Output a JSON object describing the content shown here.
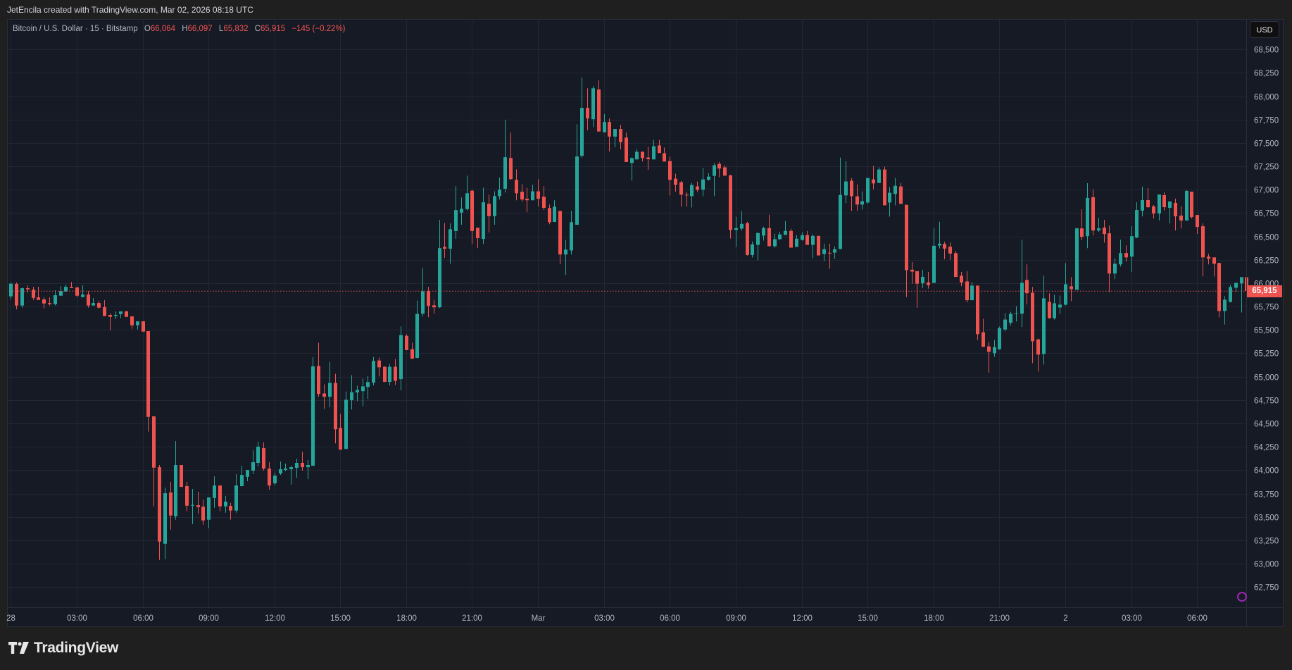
{
  "credit": "JetEncila created with TradingView.com, Mar 02, 2026 08:18 UTC",
  "legend": {
    "symbol": "Bitcoin / U.S. Dollar · 15 · Bitstamp",
    "o_label": "O",
    "o_value": "66,064",
    "h_label": "H",
    "h_value": "66,097",
    "l_label": "L",
    "l_value": "65,832",
    "c_label": "C",
    "c_value": "65,915",
    "change": "−145 (−0.22%)"
  },
  "currency_button": "USD",
  "last_price_label": "65,915",
  "footer": {
    "brand": "TradingView"
  },
  "colors": {
    "up": "#26a69a",
    "down": "#ef5350",
    "background": "#161a25",
    "grid": "#232734",
    "text": "#b2b5be"
  },
  "chart_data": {
    "type": "candlestick",
    "title": "",
    "interval": "15",
    "price_axis": {
      "ticks": [
        68500,
        68250,
        68000,
        67750,
        67500,
        67250,
        67000,
        66750,
        66500,
        66250,
        66000,
        65750,
        65500,
        65250,
        65000,
        64750,
        64500,
        64250,
        64000,
        63750,
        63500,
        63250,
        63000,
        62750
      ],
      "tick_labels": [
        "68,500",
        "68,250",
        "68,000",
        "67,750",
        "67,500",
        "67,250",
        "67,000",
        "66,750",
        "66,500",
        "66,250",
        "66,000",
        "65,750",
        "65,500",
        "65,250",
        "65,000",
        "64,750",
        "64,500",
        "64,250",
        "64,000",
        "63,750",
        "63,500",
        "63,250",
        "63,000",
        "62,750"
      ],
      "unit": "USD"
    },
    "time_axis": {
      "tick_labels": [
        "28",
        "03:00",
        "06:00",
        "09:00",
        "12:00",
        "15:00",
        "18:00",
        "21:00",
        "Mar",
        "03:00",
        "06:00",
        "09:00",
        "12:00",
        "15:00",
        "18:00",
        "21:00",
        "2",
        "03:00",
        "06:00"
      ]
    },
    "grid": true,
    "last_price": 65915,
    "ohlc": [
      [
        65859,
        66007,
        65826,
        65994
      ],
      [
        65992,
        66007,
        65720,
        65761
      ],
      [
        65761,
        65954,
        65738,
        65946
      ],
      [
        65946,
        65977,
        65899,
        65934
      ],
      [
        65931,
        65961,
        65821,
        65843
      ],
      [
        65848,
        65961,
        65821,
        65821
      ],
      [
        65826,
        65848,
        65730,
        65783
      ],
      [
        65788,
        65848,
        65761,
        65776
      ],
      [
        65776,
        65924,
        65761,
        65871
      ],
      [
        65866,
        65969,
        65866,
        65916
      ],
      [
        65911,
        65984,
        65911,
        65961
      ],
      [
        65961,
        66014,
        65949,
        65949
      ],
      [
        65954,
        65961,
        65851,
        65866
      ],
      [
        65851,
        65977,
        65851,
        65879
      ],
      [
        65879,
        65916,
        65738,
        65761
      ],
      [
        65761,
        65841,
        65761,
        65788
      ],
      [
        65788,
        65811,
        65730,
        65738
      ],
      [
        65743,
        65818,
        65648,
        65648
      ],
      [
        65660,
        65675,
        65497,
        65640
      ],
      [
        65648,
        65698,
        65617,
        65660
      ],
      [
        65670,
        65698,
        65625,
        65698
      ],
      [
        65698,
        65705,
        65640,
        65640
      ],
      [
        65645,
        65645,
        65512,
        65550
      ],
      [
        65550,
        65592,
        65504,
        65592
      ],
      [
        65592,
        65592,
        65482,
        65482
      ],
      [
        65487,
        65487,
        64412,
        64570
      ],
      [
        64575,
        64582,
        63613,
        64027
      ],
      [
        64032,
        64055,
        63040,
        63236
      ],
      [
        63213,
        63814,
        63048,
        63753
      ],
      [
        63761,
        63874,
        63364,
        63515
      ],
      [
        63507,
        64311,
        63470,
        64055
      ],
      [
        64055,
        64055,
        63821,
        63821
      ],
      [
        63829,
        63874,
        63560,
        63620
      ],
      [
        63620,
        63799,
        63424,
        63628
      ],
      [
        63625,
        63769,
        63537,
        63605
      ],
      [
        63610,
        63686,
        63417,
        63462
      ],
      [
        63470,
        63708,
        63379,
        63708
      ],
      [
        63703,
        63934,
        63598,
        63836
      ],
      [
        63836,
        63836,
        63560,
        63613
      ],
      [
        63613,
        63723,
        63545,
        63663
      ],
      [
        63618,
        63650,
        63470,
        63568
      ],
      [
        63568,
        63957,
        63545,
        63836
      ],
      [
        63829,
        64047,
        63829,
        63949
      ],
      [
        63929,
        64002,
        63882,
        64002
      ],
      [
        63995,
        64213,
        63957,
        64085
      ],
      [
        64078,
        64304,
        64040,
        64251
      ],
      [
        64236,
        64296,
        63995,
        64017
      ],
      [
        64017,
        64085,
        63791,
        63836
      ],
      [
        63859,
        63972,
        63836,
        63942
      ],
      [
        63965,
        64093,
        63949,
        64010
      ],
      [
        64002,
        64070,
        63990,
        64017
      ],
      [
        64010,
        64047,
        63844,
        64032
      ],
      [
        64025,
        64123,
        63919,
        64078
      ],
      [
        64078,
        64198,
        63995,
        64032
      ],
      [
        64032,
        64108,
        63904,
        64055
      ],
      [
        64047,
        65208,
        64047,
        65110
      ],
      [
        65114,
        65362,
        64785,
        64815
      ],
      [
        64820,
        64917,
        64656,
        64785
      ],
      [
        64785,
        65160,
        64672,
        64933
      ],
      [
        64933,
        65030,
        64287,
        64438
      ],
      [
        64451,
        64602,
        64219,
        64219
      ],
      [
        64227,
        64842,
        64227,
        64753
      ],
      [
        64748,
        65017,
        64648,
        64834
      ],
      [
        64831,
        64904,
        64739,
        64858
      ],
      [
        64845,
        64979,
        64685,
        64896
      ],
      [
        64890,
        65009,
        64761,
        64942
      ],
      [
        64936,
        65211,
        64906,
        65168
      ],
      [
        65173,
        65205,
        65003,
        65100
      ],
      [
        65106,
        65110,
        64944,
        64944
      ],
      [
        64944,
        65135,
        64906,
        65106
      ],
      [
        65106,
        65189,
        64912,
        64955
      ],
      [
        64974,
        65537,
        64853,
        65445
      ],
      [
        65437,
        65453,
        65284,
        65284
      ],
      [
        65294,
        65362,
        65192,
        65192
      ],
      [
        65200,
        65814,
        65200,
        65671
      ],
      [
        65674,
        66162,
        65645,
        65914
      ],
      [
        65914,
        65960,
        65637,
        65758
      ],
      [
        65763,
        65822,
        65674,
        65742
      ],
      [
        65742,
        66676,
        65736,
        66375
      ],
      [
        66388,
        66644,
        66270,
        66369
      ],
      [
        66369,
        66639,
        66210,
        66577
      ],
      [
        66558,
        67037,
        66474,
        66782
      ],
      [
        66755,
        66916,
        66625,
        66795
      ],
      [
        66792,
        67150,
        66776,
        66962
      ],
      [
        66989,
        67000,
        66420,
        66558
      ],
      [
        66593,
        66593,
        66377,
        66482
      ],
      [
        66474,
        67021,
        66420,
        66865
      ],
      [
        66849,
        66946,
        66542,
        66717
      ],
      [
        66717,
        66983,
        66625,
        66932
      ],
      [
        66932,
        67129,
        66895,
        67000
      ],
      [
        67010,
        67746,
        66970,
        67347
      ],
      [
        67339,
        67611,
        67105,
        67113
      ],
      [
        67105,
        67218,
        66887,
        66962
      ],
      [
        66978,
        67059,
        66873,
        66895
      ],
      [
        66903,
        67021,
        66760,
        66887
      ],
      [
        66887,
        67054,
        66887,
        66983
      ],
      [
        66983,
        67113,
        66819,
        66903
      ],
      [
        66924,
        67037,
        66782,
        66806
      ],
      [
        66803,
        66841,
        66631,
        66652
      ],
      [
        66655,
        66887,
        66655,
        66819
      ],
      [
        66773,
        66773,
        66202,
        66307
      ],
      [
        66307,
        66464,
        66089,
        66359
      ],
      [
        66350,
        66773,
        66307,
        66652
      ],
      [
        66625,
        67700,
        66625,
        67355
      ],
      [
        67363,
        68198,
        67342,
        67875
      ],
      [
        67875,
        68085,
        67636,
        67762
      ],
      [
        67754,
        68110,
        67670,
        68085
      ],
      [
        68072,
        68169,
        67622,
        67622
      ],
      [
        67614,
        67808,
        67614,
        67724
      ],
      [
        67724,
        67762,
        67409,
        67568
      ],
      [
        67568,
        67649,
        67455,
        67649
      ],
      [
        67649,
        67695,
        67431,
        67509
      ],
      [
        67557,
        67611,
        67296,
        67296
      ],
      [
        67286,
        67347,
        67098,
        67337
      ],
      [
        67324,
        67435,
        67324,
        67405
      ],
      [
        67405,
        67410,
        67301,
        67339
      ],
      [
        67344,
        67458,
        67211,
        67327
      ],
      [
        67324,
        67533,
        67324,
        67465
      ],
      [
        67473,
        67533,
        67392,
        67392
      ],
      [
        67390,
        67450,
        67301,
        67301
      ],
      [
        67306,
        67352,
        66939,
        67105
      ],
      [
        67118,
        67171,
        66977,
        67052
      ],
      [
        67080,
        67095,
        66818,
        66947
      ],
      [
        66947,
        66974,
        66818,
        66939
      ],
      [
        66931,
        67072,
        66811,
        67050
      ],
      [
        67035,
        67088,
        66977,
        67000
      ],
      [
        67000,
        67231,
        66931,
        67110
      ],
      [
        67105,
        67178,
        67100,
        67140
      ],
      [
        67148,
        67284,
        66931,
        67261
      ],
      [
        67276,
        67299,
        67135,
        67226
      ],
      [
        67239,
        67261,
        67150,
        67150
      ],
      [
        67155,
        67155,
        66478,
        66569
      ],
      [
        66569,
        66710,
        66388,
        66589
      ],
      [
        66584,
        66770,
        66561,
        66634
      ],
      [
        66642,
        66657,
        66295,
        66302
      ],
      [
        66302,
        66446,
        66275,
        66415
      ],
      [
        66410,
        66544,
        66244,
        66536
      ],
      [
        66509,
        66604,
        66456,
        66589
      ],
      [
        66589,
        66733,
        66395,
        66395
      ],
      [
        66395,
        66529,
        66380,
        66471
      ],
      [
        66471,
        66551,
        66463,
        66521
      ],
      [
        66516,
        66665,
        66516,
        66559
      ],
      [
        66559,
        66582,
        66380,
        66380
      ],
      [
        66388,
        66514,
        66388,
        66476
      ],
      [
        66463,
        66544,
        66456,
        66514
      ],
      [
        66514,
        66559,
        66410,
        66410
      ],
      [
        66410,
        66521,
        66267,
        66506
      ],
      [
        66506,
        66506,
        66297,
        66297
      ],
      [
        66312,
        66423,
        66237,
        66363
      ],
      [
        66325,
        66423,
        66154,
        66320
      ],
      [
        66327,
        66393,
        66260,
        66363
      ],
      [
        66365,
        67344,
        66365,
        66944
      ],
      [
        66939,
        67306,
        66856,
        67088
      ],
      [
        67095,
        67125,
        66773,
        66931
      ],
      [
        66929,
        67057,
        66773,
        66841
      ],
      [
        66841,
        66982,
        66788,
        66876
      ],
      [
        66863,
        67125,
        66848,
        67125
      ],
      [
        67110,
        67254,
        67005,
        67067
      ],
      [
        67072,
        67239,
        67072,
        67216
      ],
      [
        67216,
        67246,
        66833,
        66833
      ],
      [
        66863,
        67027,
        66712,
        66967
      ],
      [
        66954,
        67125,
        66833,
        67042
      ],
      [
        67035,
        67072,
        66848,
        66848
      ],
      [
        66838,
        66838,
        65852,
        66139
      ],
      [
        66144,
        66227,
        65995,
        66124
      ],
      [
        66129,
        66129,
        65738,
        65995
      ],
      [
        65999,
        66144,
        65950,
        66068
      ],
      [
        66008,
        66121,
        65942,
        65980
      ],
      [
        66003,
        66589,
        66003,
        66400
      ],
      [
        66403,
        66657,
        66373,
        66423
      ],
      [
        66420,
        66443,
        66256,
        66370
      ],
      [
        66390,
        66435,
        66249,
        66317
      ],
      [
        66322,
        66344,
        66067,
        66067
      ],
      [
        66080,
        66120,
        65969,
        66007
      ],
      [
        66019,
        66128,
        65795,
        65818
      ],
      [
        65818,
        66012,
        65818,
        65974
      ],
      [
        65974,
        65974,
        65394,
        65455
      ],
      [
        65475,
        65619,
        65319,
        65319
      ],
      [
        65324,
        65369,
        65042,
        65266
      ],
      [
        65251,
        65392,
        65213,
        65316
      ],
      [
        65294,
        65536,
        65289,
        65520
      ],
      [
        65505,
        65679,
        65485,
        65611
      ],
      [
        65576,
        65694,
        65546,
        65672
      ],
      [
        65672,
        65755,
        65591,
        65677
      ],
      [
        65674,
        66465,
        65531,
        66004
      ],
      [
        66034,
        66201,
        65772,
        65893
      ],
      [
        65898,
        65959,
        65145,
        65379
      ],
      [
        65399,
        65407,
        65054,
        65236
      ],
      [
        65243,
        66080,
        65130,
        65838
      ],
      [
        65800,
        65891,
        65619,
        65626
      ],
      [
        65626,
        65876,
        65611,
        65785
      ],
      [
        65740,
        65868,
        65672,
        65770
      ],
      [
        65770,
        66216,
        65762,
        65989
      ],
      [
        65967,
        66065,
        65808,
        65936
      ],
      [
        65929,
        66594,
        65929,
        66586
      ],
      [
        66586,
        66790,
        66458,
        66496
      ],
      [
        66503,
        67070,
        66375,
        66912
      ],
      [
        66919,
        67002,
        66511,
        66564
      ],
      [
        66564,
        66700,
        66549,
        66586
      ],
      [
        66594,
        66677,
        66435,
        66526
      ],
      [
        66533,
        66617,
        65906,
        66103
      ],
      [
        66103,
        66269,
        66042,
        66208
      ],
      [
        66201,
        66465,
        66178,
        66322
      ],
      [
        66322,
        66405,
        66231,
        66276
      ],
      [
        66284,
        66609,
        66118,
        66503
      ],
      [
        66488,
        66866,
        66481,
        66783
      ],
      [
        66776,
        67032,
        66715,
        66889
      ],
      [
        66889,
        67017,
        66806,
        66813
      ],
      [
        66821,
        66836,
        66692,
        66745
      ],
      [
        66745,
        66949,
        66670,
        66949
      ],
      [
        66942,
        66972,
        66775,
        66813
      ],
      [
        66806,
        66874,
        66639,
        66874
      ],
      [
        66859,
        66904,
        66564,
        66715
      ],
      [
        66723,
        66821,
        66586,
        66670
      ],
      [
        66670,
        66995,
        66670,
        66987
      ],
      [
        66979,
        66979,
        66692,
        66707
      ],
      [
        66730,
        66730,
        66526,
        66602
      ],
      [
        66609,
        66639,
        66072,
        66276
      ],
      [
        66284,
        66314,
        66201,
        66261
      ],
      [
        66276,
        66276,
        66072,
        66208
      ],
      [
        66216,
        66216,
        65634,
        65702
      ],
      [
        65702,
        65861,
        65558,
        65823
      ],
      [
        65800,
        65982,
        65793,
        65959
      ],
      [
        65951,
        66004,
        65906,
        66004
      ],
      [
        65997,
        66065,
        65687,
        66065
      ],
      [
        66064,
        66097,
        65832,
        65915
      ]
    ]
  }
}
